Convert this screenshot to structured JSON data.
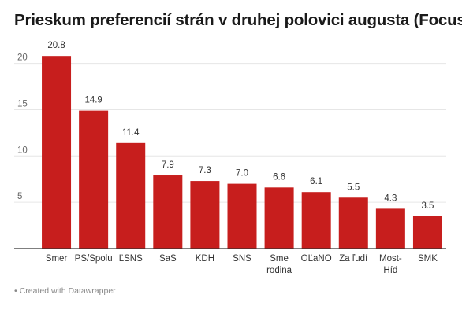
{
  "title": "Prieskum preferencií strán v druhej polovici augusta (Focus)",
  "footer": {
    "bullet": "•",
    "text": "Created with Datawrapper"
  },
  "colors": {
    "bar": "#c71e1d",
    "grid": "#e6e6e6",
    "axis": "#333333",
    "label": "#333333",
    "tick": "#666666"
  },
  "chart_data": {
    "type": "bar",
    "title": "Prieskum preferencií strán v druhej polovici augusta (Focus)",
    "categories": [
      [
        "Smer"
      ],
      [
        "PS/Spolu"
      ],
      [
        "ĽSNS"
      ],
      [
        "SaS"
      ],
      [
        "KDH"
      ],
      [
        "SNS"
      ],
      [
        "Sme",
        "rodina"
      ],
      [
        "OĽaNO"
      ],
      [
        "Za ľudí"
      ],
      [
        "Most-",
        "Híd"
      ],
      [
        "SMK"
      ]
    ],
    "values": [
      20.8,
      14.9,
      11.4,
      7.9,
      7.3,
      7.0,
      6.6,
      6.1,
      5.5,
      4.3,
      3.5
    ],
    "value_labels": [
      "20.8",
      "14.9",
      "11.4",
      "7.9",
      "7.3",
      "7.0",
      "6.6",
      "6.1",
      "5.5",
      "4.3",
      "3.5"
    ],
    "yticks": [
      5,
      10,
      15,
      20
    ],
    "ylim": [
      0,
      22
    ],
    "grid": true,
    "xlabel": "",
    "ylabel": ""
  }
}
